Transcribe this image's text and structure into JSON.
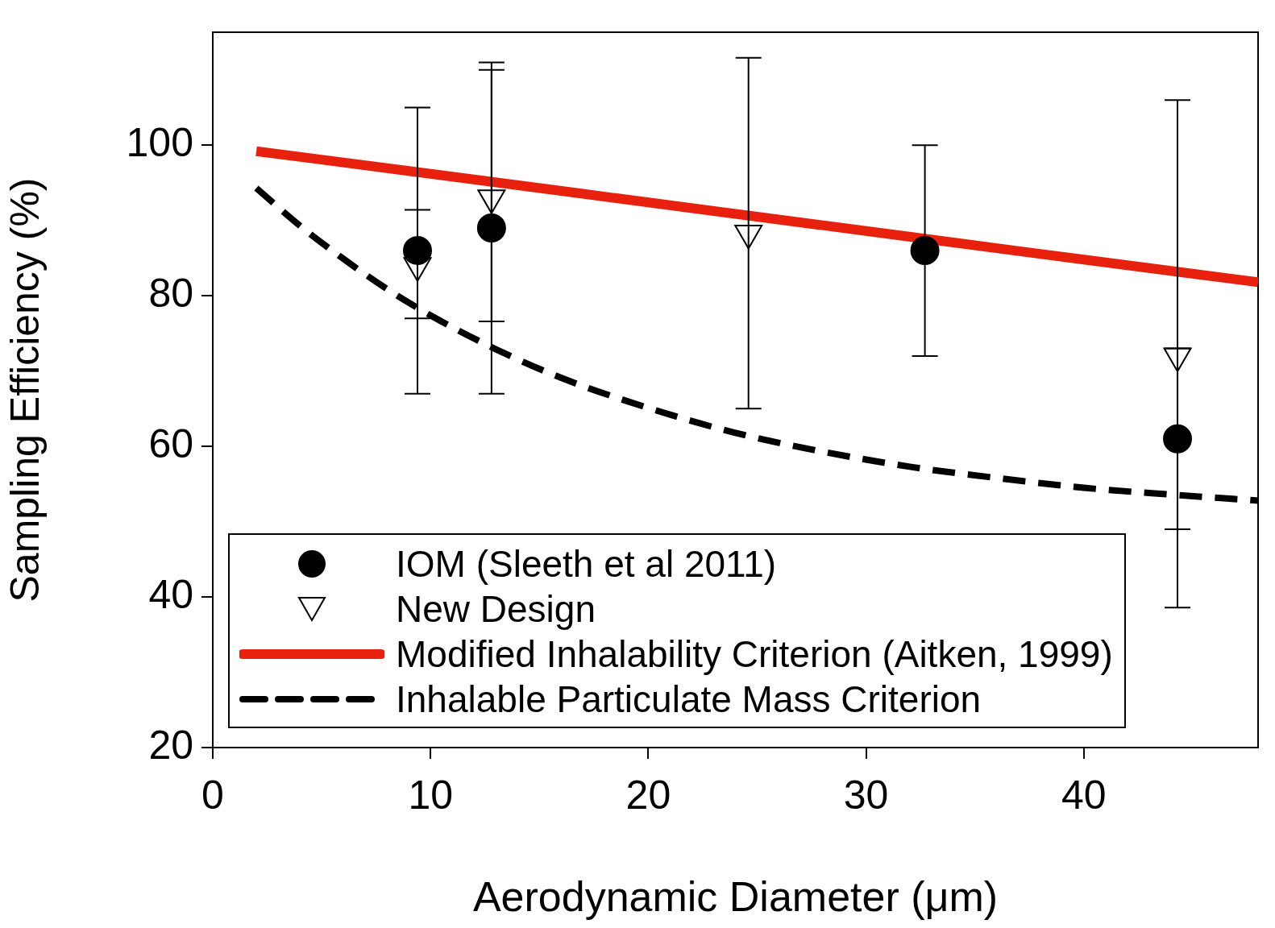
{
  "chart_data": {
    "type": "scatter",
    "xlabel": "Aerodynamic Diameter (μm)",
    "ylabel": "Sampling Efficiency (%)",
    "xlim": [
      0,
      48
    ],
    "ylim": [
      20,
      115
    ],
    "xticks": [
      0,
      10,
      20,
      30,
      40
    ],
    "yticks": [
      20,
      40,
      60,
      80,
      100
    ],
    "grid": false,
    "legend": "bottom left",
    "series": [
      {
        "name": "IOM (Sleeth et al 2011)",
        "marker": "circle",
        "color": "#000000",
        "x": [
          9.4,
          12.8,
          32.7,
          44.3
        ],
        "values": [
          86,
          89,
          86,
          61
        ],
        "errors": [
          [
            67,
            105
          ],
          [
            67,
            111
          ],
          [
            72,
            100
          ],
          [
            49,
            73
          ]
        ]
      },
      {
        "name": "New Design",
        "marker": "triangle",
        "color": "#000000",
        "x": [
          9.4,
          12.8,
          24.6,
          44.3
        ],
        "values": [
          84,
          93,
          88.3,
          72
        ],
        "errors": [
          [
            77,
            91.4
          ],
          [
            76.6,
            110
          ],
          [
            65,
            111.6
          ],
          [
            38.6,
            106
          ]
        ]
      },
      {
        "name": "Modified Inhalability Criterion (Aitken, 1999)",
        "type": "line",
        "marker": "none",
        "line_style": "solid",
        "color": "#e8210f",
        "x": [
          2,
          10,
          20,
          30,
          40,
          48
        ],
        "values": [
          99.2,
          96.2,
          92.4,
          88.6,
          84.8,
          81.8
        ]
      },
      {
        "name": "Inhalable Particulate Mass Criterion",
        "type": "line",
        "marker": "none",
        "line_style": "dashed",
        "color": "#000000",
        "x": [
          2,
          4,
          6,
          8,
          10,
          13,
          16,
          20,
          24,
          28,
          32,
          36,
          40,
          44,
          48
        ],
        "values": [
          94.3,
          89.3,
          84.9,
          80.9,
          77.4,
          72.9,
          69.1,
          65.1,
          61.8,
          59.3,
          57.3,
          55.8,
          54.5,
          53.6,
          52.8
        ]
      }
    ]
  }
}
